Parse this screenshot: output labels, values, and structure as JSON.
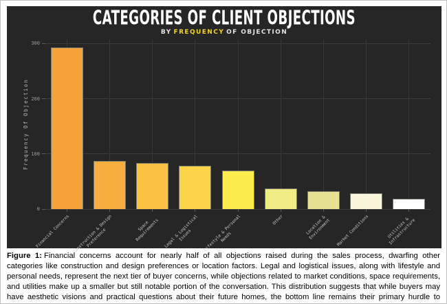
{
  "figure": {
    "title": "CATEGORIES OF CLIENT OBJECTIONS",
    "subtitle_pre": "BY",
    "subtitle_highlight": "FREQUENCY",
    "subtitle_post": "OF OBJECTION"
  },
  "chart_data": {
    "type": "bar",
    "title": "CATEGORIES OF CLIENT OBJECTIONS",
    "subtitle": "BY FREQUENCY OF OBJECTION",
    "xlabel": "",
    "ylabel": "Frequency Of Objection",
    "ylim": [
      0,
      308
    ],
    "yticks": [
      0,
      100,
      200,
      300
    ],
    "grid": true,
    "legend_position": "none",
    "categories": [
      "Financial Concerns",
      "Construction & Design\nPreference",
      "Space\nRequirements",
      "Legal & Logistical\nIssues",
      "Lifestyle & Personal\nNeeds",
      "Other",
      "Location &\nEnvironment",
      "Market Conditions",
      "Utilities &\nInfrastructure"
    ],
    "values": [
      293,
      87,
      83,
      78,
      70,
      38,
      33,
      29,
      19
    ],
    "bar_colors": [
      "#F6A23B",
      "#F7B040",
      "#F9C245",
      "#FBD348",
      "#FDEC4E",
      "#EFEB85",
      "#E6E193",
      "#F9F6DB",
      "#FFFFFF"
    ]
  },
  "caption": {
    "label": "Figure 1:",
    "text": "Financial concerns account for nearly half of all objections raised during the sales process, dwarfing other categories like construction and design preferences or location factors. Legal and logistical issues, along with lifestyle and personal needs, represent the next tier of buyer concerns, while objections related to market conditions, space requirements, and utilities make up a smaller but still notable portion of the conversation. This distribution suggests that while buyers may have aesthetic visions and practical questions about their future homes, the bottom line remains their primary hurdle to signing a contract."
  },
  "colors": {
    "panel_bg": "#262626",
    "gridline": "#3c3c3c",
    "accent_yellow": "#F5D41C",
    "tick_text": "#9d9d9d",
    "bar_edge": "#7a7a6e",
    "title_text": "#ffffff",
    "caption_text": "#000000"
  }
}
